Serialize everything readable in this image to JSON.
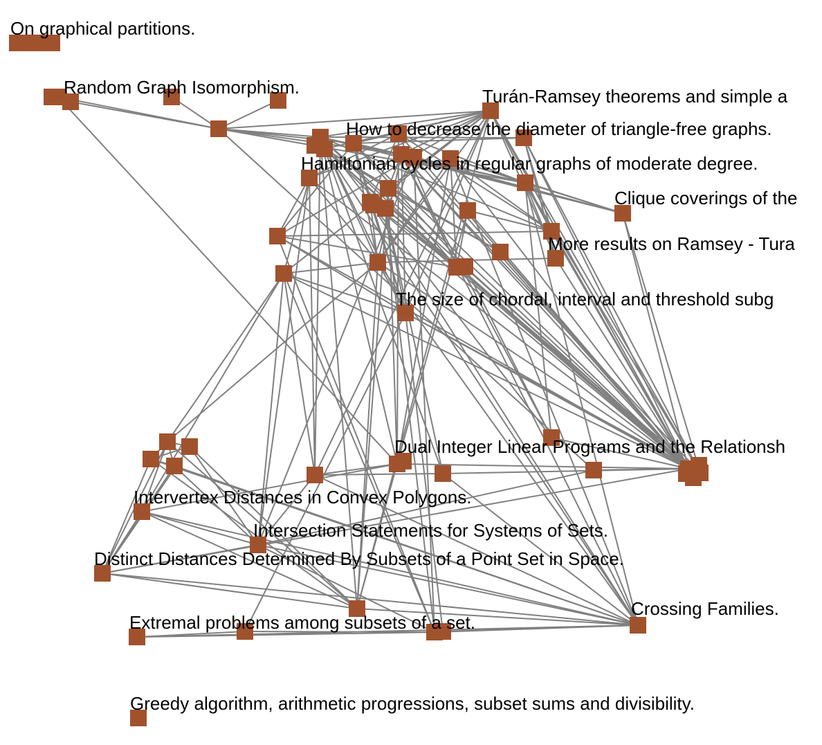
{
  "colors": {
    "node": "#A0522D",
    "edge": "#808080",
    "label": "#000000",
    "background": "#ffffff"
  },
  "graph": {
    "labels": [
      {
        "id": "L1",
        "text": "On graphical partitions."
      },
      {
        "id": "L2",
        "text": "Random Graph Isomorphism."
      },
      {
        "id": "L3",
        "text": "Turán-Ramsey theorems and simple a"
      },
      {
        "id": "L4",
        "text": "How to decrease the diameter of triangle-free graphs."
      },
      {
        "id": "L5",
        "text": "Hamiltonian cycles in regular graphs of moderate degree."
      },
      {
        "id": "L6",
        "text": "Clique coverings of the"
      },
      {
        "id": "L7",
        "text": "More results on Ramsey - Tura"
      },
      {
        "id": "L8",
        "text": "The size of chordal, interval and threshold subg"
      },
      {
        "id": "L9",
        "text": "Dual Integer Linear Programs and the Relationsh"
      },
      {
        "id": "L10",
        "text": "Intervertex Distances in Convex Polygons."
      },
      {
        "id": "L11",
        "text": "Intersection Statements for Systems of Sets."
      },
      {
        "id": "L12",
        "text": "Distinct Distances Determined By Subsets of a Point Set in Space."
      },
      {
        "id": "L13",
        "text": "Crossing Families."
      },
      {
        "id": "L14",
        "text": "Extremal problems among subsets of a set."
      },
      {
        "id": "L15",
        "text": "Greedy algorithm, arithmetic progressions, subset sums and divisibility."
      }
    ]
  }
}
